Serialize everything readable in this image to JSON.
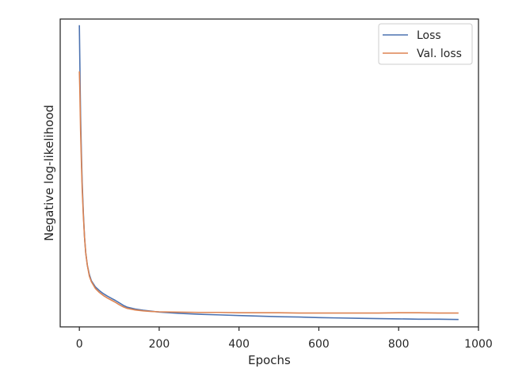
{
  "chart_data": {
    "type": "line",
    "title": "",
    "xlabel": "Epochs",
    "ylabel": "Negative log-likelihood",
    "xlim": [
      -48,
      1000
    ],
    "ylim": [
      0,
      1
    ],
    "xticks": [
      0,
      200,
      400,
      600,
      800,
      1000
    ],
    "yticks": [],
    "grid": false,
    "legend_position": "top-right",
    "series": [
      {
        "name": "Loss",
        "color": "#4c72b0",
        "x": [
          0,
          1,
          2,
          3,
          5,
          7,
          10,
          13,
          16,
          20,
          25,
          30,
          35,
          40,
          50,
          60,
          70,
          80,
          90,
          100,
          110,
          120,
          140,
          160,
          180,
          200,
          250,
          300,
          350,
          400,
          450,
          500,
          550,
          600,
          650,
          700,
          750,
          800,
          850,
          900,
          950
        ],
        "values": [
          0.98,
          0.88,
          0.78,
          0.69,
          0.57,
          0.47,
          0.37,
          0.29,
          0.24,
          0.2,
          0.17,
          0.15,
          0.14,
          0.13,
          0.118,
          0.108,
          0.1,
          0.093,
          0.086,
          0.078,
          0.07,
          0.064,
          0.058,
          0.054,
          0.051,
          0.048,
          0.044,
          0.041,
          0.039,
          0.037,
          0.035,
          0.033,
          0.032,
          0.03,
          0.029,
          0.028,
          0.027,
          0.026,
          0.025,
          0.025,
          0.024
        ]
      },
      {
        "name": "Val. loss",
        "color": "#dd8452",
        "x": [
          0,
          1,
          2,
          3,
          5,
          7,
          10,
          13,
          16,
          20,
          25,
          30,
          35,
          40,
          50,
          60,
          70,
          80,
          90,
          100,
          110,
          120,
          140,
          160,
          180,
          200,
          250,
          300,
          350,
          400,
          450,
          500,
          550,
          600,
          650,
          700,
          750,
          800,
          850,
          900,
          950
        ],
        "values": [
          0.83,
          0.78,
          0.71,
          0.64,
          0.54,
          0.45,
          0.36,
          0.29,
          0.24,
          0.2,
          0.165,
          0.147,
          0.136,
          0.125,
          0.112,
          0.102,
          0.094,
          0.087,
          0.08,
          0.072,
          0.065,
          0.06,
          0.055,
          0.052,
          0.05,
          0.049,
          0.048,
          0.047,
          0.047,
          0.046,
          0.046,
          0.046,
          0.045,
          0.045,
          0.045,
          0.045,
          0.045,
          0.046,
          0.046,
          0.045,
          0.045
        ]
      }
    ]
  }
}
